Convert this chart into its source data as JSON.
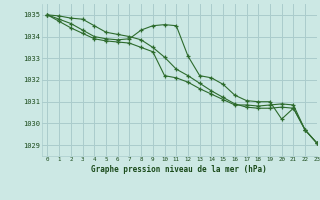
{
  "title": "Graphe pression niveau de la mer (hPa)",
  "bg_color": "#cce8e4",
  "grid_color": "#aacccc",
  "line_color": "#2d6b2d",
  "text_color": "#1a4a1a",
  "xlim": [
    -0.5,
    23
  ],
  "ylim": [
    1028.5,
    1035.5
  ],
  "yticks": [
    1029,
    1030,
    1031,
    1032,
    1033,
    1034,
    1035
  ],
  "xticks": [
    0,
    1,
    2,
    3,
    4,
    5,
    6,
    7,
    8,
    9,
    10,
    11,
    12,
    13,
    14,
    15,
    16,
    17,
    18,
    19,
    20,
    21,
    22,
    23
  ],
  "series": [
    [
      1035.0,
      1034.8,
      1034.6,
      1034.3,
      1034.0,
      1033.9,
      1033.85,
      1033.9,
      1034.3,
      1034.5,
      1034.55,
      1034.5,
      1033.1,
      1032.2,
      1032.1,
      1031.8,
      1031.3,
      1031.05,
      1031.0,
      1031.0,
      1030.2,
      1030.7,
      1029.7,
      1029.1
    ],
    [
      1035.0,
      1034.7,
      1034.4,
      1034.15,
      1033.9,
      1033.8,
      1033.75,
      1033.7,
      1033.5,
      1033.3,
      1032.2,
      1032.1,
      1031.9,
      1031.6,
      1031.35,
      1031.1,
      1030.85,
      1030.85,
      1030.8,
      1030.85,
      1030.9,
      1030.85,
      1029.7,
      1029.1
    ],
    [
      1035.0,
      1034.95,
      1034.85,
      1034.8,
      1034.5,
      1034.2,
      1034.1,
      1034.0,
      1033.85,
      1033.5,
      1033.05,
      1032.5,
      1032.2,
      1031.85,
      1031.5,
      1031.2,
      1030.9,
      1030.75,
      1030.7,
      1030.7,
      1030.75,
      1030.7,
      1029.7,
      1029.1
    ]
  ]
}
